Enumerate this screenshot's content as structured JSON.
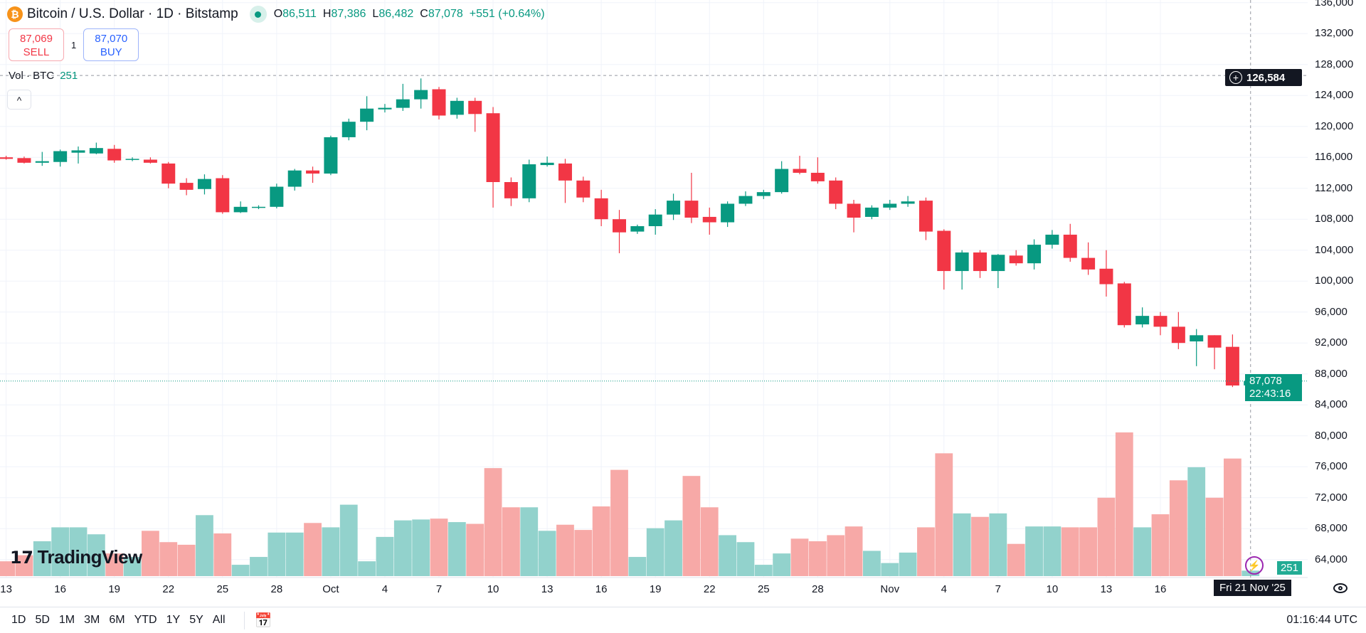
{
  "header": {
    "symbol": "Bitcoin / U.S. Dollar · 1D · Bitstamp",
    "coin_glyph": "₿",
    "o_label": "O",
    "o": "86,511",
    "h_label": "H",
    "h": "87,386",
    "l_label": "L",
    "l": "86,482",
    "c_label": "C",
    "c": "87,078",
    "change": "+551 (+0.64%)"
  },
  "trade": {
    "sell_price": "87,069",
    "sell_label": "SELL",
    "qty": "1",
    "buy_price": "87,070",
    "buy_label": "BUY"
  },
  "volume_legend": {
    "label": "Vol · BTC",
    "value": "251"
  },
  "collapse_icon": "^",
  "crosshair": {
    "price": "126,584",
    "date": "Fri 21 Nov '25"
  },
  "last_price": {
    "price": "87,078",
    "countdown": "22:43:16",
    "volume": "251"
  },
  "logo": "TradingView",
  "ranges": [
    "1D",
    "5D",
    "1M",
    "3M",
    "6M",
    "YTD",
    "1Y",
    "5Y",
    "All"
  ],
  "clock": "01:16:44 UTC",
  "colors": {
    "up": "#089981",
    "down": "#f23645",
    "vol_up": "#92d2cc",
    "vol_down": "#f7a9a7",
    "grid": "#f0f3fa"
  },
  "chart_data": {
    "type": "candlestick",
    "title": "Bitcoin / U.S. Dollar · 1D · Bitstamp",
    "y_ticks": [
      "136,000",
      "132,000",
      "128,000",
      "124,000",
      "120,000",
      "116,000",
      "112,000",
      "108,000",
      "104,000",
      "100,000",
      "96,000",
      "92,000",
      "88,000",
      "84,000",
      "80,000",
      "76,000",
      "72,000",
      "68,000",
      "64,000"
    ],
    "ylim": [
      64000,
      136000
    ],
    "x_ticks": [
      {
        "label": "13",
        "i": 0
      },
      {
        "label": "16",
        "i": 3
      },
      {
        "label": "19",
        "i": 6
      },
      {
        "label": "22",
        "i": 9
      },
      {
        "label": "25",
        "i": 12
      },
      {
        "label": "28",
        "i": 15
      },
      {
        "label": "Oct",
        "i": 18
      },
      {
        "label": "4",
        "i": 21
      },
      {
        "label": "7",
        "i": 24
      },
      {
        "label": "10",
        "i": 27
      },
      {
        "label": "13",
        "i": 30
      },
      {
        "label": "16",
        "i": 33
      },
      {
        "label": "19",
        "i": 36
      },
      {
        "label": "22",
        "i": 39
      },
      {
        "label": "25",
        "i": 42
      },
      {
        "label": "28",
        "i": 45
      },
      {
        "label": "Nov",
        "i": 49
      },
      {
        "label": "4",
        "i": 52
      },
      {
        "label": "7",
        "i": 55
      },
      {
        "label": "10",
        "i": 58
      },
      {
        "label": "13",
        "i": 61
      },
      {
        "label": "16",
        "i": 64
      }
    ],
    "ohlc": [
      [
        116000,
        116200,
        115700,
        115800
      ],
      [
        115900,
        116100,
        115200,
        115300
      ],
      [
        115300,
        116700,
        114900,
        115500
      ],
      [
        115400,
        117000,
        114800,
        116800
      ],
      [
        116600,
        117400,
        115200,
        116900
      ],
      [
        116500,
        117900,
        116400,
        117200
      ],
      [
        117100,
        117600,
        115300,
        115600
      ],
      [
        115700,
        116000,
        115500,
        115800
      ],
      [
        115700,
        116000,
        115200,
        115300
      ],
      [
        115200,
        115400,
        112000,
        112600
      ],
      [
        112700,
        113300,
        111100,
        111800
      ],
      [
        111900,
        113800,
        111200,
        113200
      ],
      [
        113300,
        113700,
        108700,
        108900
      ],
      [
        108900,
        110300,
        108800,
        109600
      ],
      [
        109500,
        109800,
        109300,
        109600
      ],
      [
        109600,
        112600,
        109400,
        112200
      ],
      [
        112200,
        114500,
        111700,
        114300
      ],
      [
        114300,
        114800,
        112700,
        113900
      ],
      [
        113900,
        118800,
        113700,
        118600
      ],
      [
        118600,
        121000,
        118200,
        120600
      ],
      [
        120600,
        123900,
        119500,
        122300
      ],
      [
        122200,
        122900,
        121800,
        122400
      ],
      [
        122400,
        125500,
        122000,
        123500
      ],
      [
        123500,
        126200,
        122300,
        124700
      ],
      [
        124800,
        125100,
        120900,
        121400
      ],
      [
        121500,
        123700,
        121000,
        123300
      ],
      [
        123300,
        123700,
        119300,
        121600
      ],
      [
        121700,
        122500,
        109500,
        112800
      ],
      [
        112800,
        113400,
        109700,
        110700
      ],
      [
        110700,
        115700,
        110200,
        115100
      ],
      [
        115000,
        116100,
        114800,
        115300
      ],
      [
        115200,
        115800,
        110100,
        113000
      ],
      [
        113000,
        113500,
        110200,
        110800
      ],
      [
        110700,
        111800,
        107100,
        108000
      ],
      [
        108000,
        109200,
        103600,
        106300
      ],
      [
        106400,
        107300,
        106100,
        107100
      ],
      [
        107100,
        109300,
        106000,
        108600
      ],
      [
        108600,
        111300,
        107900,
        110400
      ],
      [
        110400,
        114000,
        107500,
        108200
      ],
      [
        108300,
        109500,
        106000,
        107600
      ],
      [
        107600,
        110300,
        107000,
        110000
      ],
      [
        110000,
        111600,
        109700,
        111000
      ],
      [
        111000,
        111800,
        110600,
        111500
      ],
      [
        111500,
        115500,
        111300,
        114500
      ],
      [
        114500,
        116200,
        113800,
        114000
      ],
      [
        114000,
        116000,
        112600,
        112900
      ],
      [
        113000,
        113400,
        109300,
        110000
      ],
      [
        110000,
        110500,
        106300,
        108200
      ],
      [
        108300,
        109800,
        108000,
        109500
      ],
      [
        109500,
        110500,
        109200,
        110000
      ],
      [
        110000,
        111000,
        109600,
        110300
      ],
      [
        110400,
        110800,
        105300,
        106400
      ],
      [
        106500,
        106700,
        98900,
        101300
      ],
      [
        101300,
        104000,
        98900,
        103700
      ],
      [
        103700,
        104000,
        100400,
        101300
      ],
      [
        101300,
        103500,
        99100,
        103400
      ],
      [
        103300,
        104000,
        102000,
        102300
      ],
      [
        102300,
        105400,
        101500,
        104700
      ],
      [
        104700,
        106600,
        104200,
        106000
      ],
      [
        106000,
        107400,
        102500,
        103000
      ],
      [
        103000,
        105000,
        100800,
        101500
      ],
      [
        101600,
        104000,
        98000,
        99600
      ],
      [
        99700,
        99900,
        94000,
        94300
      ],
      [
        94400,
        96600,
        94000,
        95500
      ],
      [
        95500,
        96000,
        93000,
        94100
      ],
      [
        94100,
        96000,
        91200,
        92000
      ],
      [
        92200,
        93800,
        89000,
        93000
      ],
      [
        93000,
        93000,
        88600,
        91400
      ],
      [
        91500,
        93100,
        86300,
        86500
      ],
      [
        86511,
        87386,
        86482,
        87078
      ]
    ],
    "volume_btc": [
      680,
      960,
      1600,
      2240,
      2240,
      1920,
      1040,
      880,
      2080,
      1560,
      1440,
      2800,
      1960,
      520,
      880,
      2000,
      2000,
      2440,
      2240,
      3280,
      680,
      1800,
      2560,
      2600,
      2640,
      2480,
      2400,
      4960,
      3160,
      3160,
      2080,
      2360,
      2120,
      3200,
      4880,
      880,
      2200,
      2560,
      4600,
      3160,
      1880,
      1560,
      520,
      1040,
      1720,
      1600,
      1880,
      2280,
      1160,
      600,
      1080,
      2240,
      5640,
      2880,
      2720,
      2880,
      1480,
      2280,
      2280,
      2240,
      2240,
      3600,
      6600,
      2240,
      2840,
      4400,
      5000,
      3600,
      5400,
      251
    ]
  }
}
